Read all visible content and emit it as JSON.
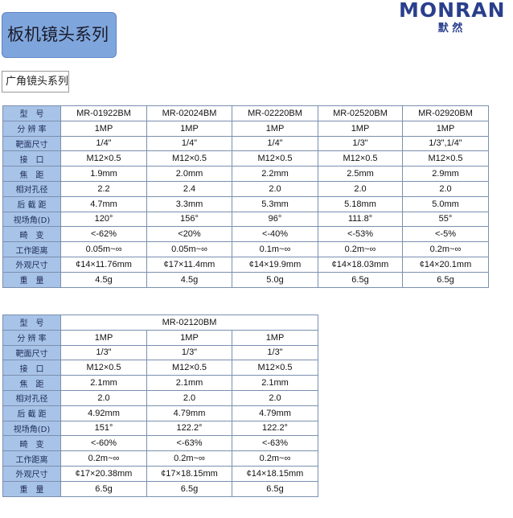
{
  "logo": {
    "brand": "MONRAN",
    "chinese": "默 然"
  },
  "header": {
    "title": "板机镜头系列"
  },
  "section": {
    "title": "广角镜头系列"
  },
  "tables": [
    {
      "labels": [
        "型　号",
        "分 辨 率",
        "靶面尺寸",
        "接　口",
        "焦　距",
        "相对孔径",
        "后 截 距",
        "视场角(D)",
        "畸　变",
        "工作距离",
        "外观尺寸",
        "重　量"
      ],
      "rows": [
        [
          "MR-01922BM",
          "MR-02024BM",
          "MR-02220BM",
          "MR-02520BM",
          "MR-02920BM"
        ],
        [
          "1MP",
          "1MP",
          "1MP",
          "1MP",
          "1MP"
        ],
        [
          "1/4\"",
          "1/4\"",
          "1/4\"",
          "1/3\"",
          "1/3\",1/4\""
        ],
        [
          "M12×0.5",
          "M12×0.5",
          "M12×0.5",
          "M12×0.5",
          "M12×0.5"
        ],
        [
          "1.9mm",
          "2.0mm",
          "2.2mm",
          "2.5mm",
          "2.9mm"
        ],
        [
          "2.2",
          "2.4",
          "2.0",
          "2.0",
          "2.0"
        ],
        [
          "4.7mm",
          "3.3mm",
          "5.3mm",
          "5.18mm",
          "5.0mm"
        ],
        [
          "120°",
          "156°",
          "96°",
          "111.8°",
          "55°"
        ],
        [
          "<-62%",
          "<20%",
          "<-40%",
          "<-53%",
          "<-5%"
        ],
        [
          "0.05m~∞",
          "0.05m~∞",
          "0.1m~∞",
          "0.2m~∞",
          "0.2m~∞"
        ],
        [
          "¢14×11.76mm",
          "¢17×11.4mm",
          "¢14×19.9mm",
          "¢14×18.03mm",
          "¢14×20.1mm"
        ],
        [
          "4.5g",
          "4.5g",
          "5.0g",
          "6.5g",
          "6.5g"
        ]
      ]
    },
    {
      "labels": [
        "型　号",
        "分 辨 率",
        "靶面尺寸",
        "接　口",
        "焦　距",
        "相对孔径",
        "后 截 距",
        "视场角(D)",
        "畸　变",
        "工作距离",
        "外观尺寸",
        "重　量"
      ],
      "rows": [
        [
          "MR-02120BM"
        ],
        [
          "1MP",
          "1MP",
          "1MP"
        ],
        [
          "1/3\"",
          "1/3\"",
          "1/3\""
        ],
        [
          "M12×0.5",
          "M12×0.5",
          "M12×0.5"
        ],
        [
          "2.1mm",
          "2.1mm",
          "2.1mm"
        ],
        [
          "2.0",
          "2.0",
          "2.0"
        ],
        [
          "4.92mm",
          "4.79mm",
          "4.79mm"
        ],
        [
          "151°",
          "122.2°",
          "122.2°"
        ],
        [
          "<-60%",
          "<-63%",
          "<-63%"
        ],
        [
          "0.2m~∞",
          "0.2m~∞",
          "0.2m~∞"
        ],
        [
          "¢17×20.38mm",
          "¢17×18.15mm",
          "¢14×18.15mm"
        ],
        [
          "6.5g",
          "6.5g",
          "6.5g"
        ]
      ]
    }
  ]
}
